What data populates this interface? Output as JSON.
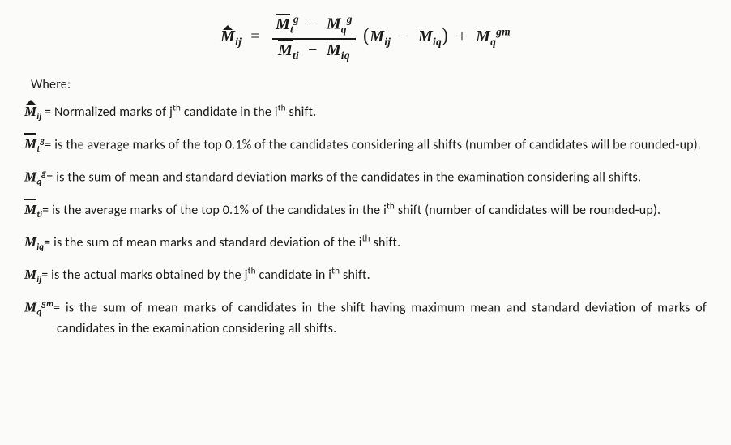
{
  "formula": {
    "lhs": {
      "base": "M",
      "hat": true,
      "sub": "ij"
    },
    "frac": {
      "num_a": {
        "base": "M",
        "bar": true,
        "sub": "t",
        "sup": "g"
      },
      "num_b": {
        "base": "M",
        "sub": "q",
        "sup": "g"
      },
      "den_a": {
        "base": "M",
        "bar": true,
        "sub": "ti"
      },
      "den_b": {
        "base": "M",
        "sub": "iq"
      }
    },
    "paren_a": {
      "base": "M",
      "sub": "ij"
    },
    "paren_b": {
      "base": "M",
      "sub": "iq"
    },
    "tail": {
      "base": "M",
      "sub": "q",
      "sup": "gm"
    }
  },
  "where_label": "Where:",
  "defs": [
    {
      "sym_html": "<span class='hat var'>M</span><span class='sub'>ij</span>",
      "text": " = Normalized marks of j<span class='th'>th</span> candidate in the i<span class='th'>th</span> shift."
    },
    {
      "sym_html": "<span class='bar var'>M</span><span class='sub'>t</span><span class='sup'>g</span>",
      "text": "= is the average marks of the top 0.1% of the candidates considering all shifts (number of candidates will be rounded-up)."
    },
    {
      "sym_html": "<span class='var'>M</span><span class='sub'>q</span><span class='sup'>g</span>",
      "text": "= is the sum of mean and standard deviation marks of the candidates in the examination considering all shifts."
    },
    {
      "sym_html": "<span class='bar var'>M</span><span class='sub'>ti</span>",
      "text": "= is the average marks of the top 0.1% of the candidates in the i<span class='th'>th</span> shift (number of candidates will be rounded-up)."
    },
    {
      "sym_html": "<span class='var'>M</span><span class='sub'>iq</span>",
      "text": "= is the sum of mean marks and standard deviation of the i<span class='th'>th</span> shift."
    },
    {
      "sym_html": "<span class='var'>M</span><span class='sub'>ij</span>",
      "text": "= is the actual marks obtained by the j<span class='th'>th</span> candidate in i<span class='th'>th</span> shift."
    },
    {
      "sym_html": "<span class='var'>M</span><span class='sub'>q</span><span class='sup'>gm</span>",
      "text": "= is the sum of mean marks of candidates in the shift having maximum mean and standard deviation of marks of candidates in the examination considering all shifts."
    }
  ],
  "colors": {
    "text": "#1a1a1a",
    "bg": "#fbfbf9"
  }
}
